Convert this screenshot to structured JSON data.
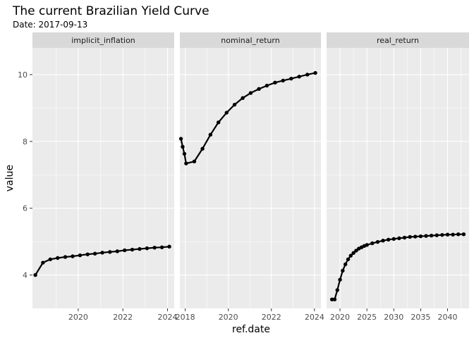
{
  "chart_data": {
    "type": "line",
    "title": "The current Brazilian Yield Curve",
    "subtitle": "Date: 2017-09-13",
    "xlabel": "ref.date",
    "ylabel": "value",
    "ylim": [
      3.0,
      10.8
    ],
    "yticks": [
      4,
      6,
      8,
      10
    ],
    "grid": true,
    "legend": "none",
    "panels": [
      {
        "name": "implicit_inflation",
        "xlim": [
          2017.95,
          2024.3
        ],
        "xticks": [
          2020,
          2022,
          2024
        ],
        "x": [
          2018.08,
          2018.42,
          2018.75,
          2019.08,
          2019.42,
          2019.75,
          2020.08,
          2020.42,
          2020.75,
          2021.08,
          2021.42,
          2021.75,
          2022.08,
          2022.42,
          2022.75,
          2023.08,
          2023.42,
          2023.75,
          2024.08
        ],
        "values": [
          4.0,
          4.37,
          4.47,
          4.51,
          4.54,
          4.56,
          4.59,
          4.62,
          4.64,
          4.67,
          4.69,
          4.71,
          4.74,
          4.76,
          4.78,
          4.8,
          4.82,
          4.83,
          4.85
        ]
      },
      {
        "name": "nominal_return",
        "xlim": [
          2017.75,
          2024.3
        ],
        "xticks": [
          2018,
          2020,
          2022,
          2024
        ],
        "x": [
          2017.8,
          2017.88,
          2017.96,
          2018.04,
          2018.42,
          2018.8,
          2019.17,
          2019.54,
          2019.92,
          2020.29,
          2020.67,
          2021.04,
          2021.42,
          2021.79,
          2022.17,
          2022.54,
          2022.92,
          2023.29,
          2023.67,
          2024.04
        ],
        "values": [
          8.08,
          7.84,
          7.63,
          7.34,
          7.4,
          7.78,
          8.2,
          8.57,
          8.86,
          9.1,
          9.3,
          9.45,
          9.57,
          9.67,
          9.76,
          9.82,
          9.88,
          9.94,
          10.0,
          10.05
        ]
      },
      {
        "name": "real_return",
        "xlim": [
          2017.5,
          2044.0
        ],
        "xticks": [
          2020,
          2025,
          2030,
          2035,
          2040
        ],
        "x": [
          2018.5,
          2019.0,
          2019.5,
          2020.0,
          2020.5,
          2021.0,
          2021.5,
          2022.0,
          2022.5,
          2023.0,
          2023.5,
          2024.0,
          2024.5,
          2025.0,
          2026.0,
          2027.0,
          2028.0,
          2029.0,
          2030.0,
          2031.0,
          2032.0,
          2033.0,
          2034.0,
          2035.0,
          2036.0,
          2037.0,
          2038.0,
          2039.0,
          2040.0,
          2041.0,
          2042.0,
          2043.0
        ],
        "values": [
          3.27,
          3.27,
          3.55,
          3.86,
          4.13,
          4.32,
          4.47,
          4.58,
          4.66,
          4.73,
          4.79,
          4.83,
          4.87,
          4.9,
          4.95,
          4.99,
          5.03,
          5.06,
          5.08,
          5.1,
          5.12,
          5.14,
          5.15,
          5.16,
          5.17,
          5.18,
          5.19,
          5.2,
          5.21,
          5.21,
          5.22,
          5.22
        ]
      }
    ]
  }
}
